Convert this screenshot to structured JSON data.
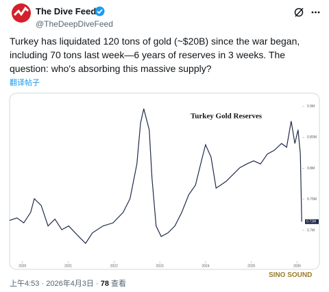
{
  "header": {
    "name": "The Dive Feed",
    "handle": "@TheDeepDiveFeed"
  },
  "post": {
    "lines": [
      "Turkey has liquidated 120 tons of gold (~$20B) since the war began,",
      "including 70 tons last week—6 years of reserves in 3 weeks. The",
      "question: who's absorbing this massive supply?"
    ],
    "translate": "翻译帖子"
  },
  "chart_data": {
    "type": "line",
    "title": "Turkey Gold Reserves",
    "color": "#1f2a4a",
    "x": [
      2019.72,
      2019.88,
      2020.03,
      2020.18,
      2020.26,
      2020.41,
      2020.56,
      2020.71,
      2020.86,
      2021.01,
      2021.23,
      2021.38,
      2021.53,
      2021.76,
      2021.98,
      2022.2,
      2022.35,
      2022.5,
      2022.58,
      2022.65,
      2022.77,
      2022.83,
      2022.92,
      2023.03,
      2023.18,
      2023.33,
      2023.48,
      2023.63,
      2023.78,
      2023.93,
      2024.0,
      2024.12,
      2024.23,
      2024.33,
      2024.45,
      2024.6,
      2024.75,
      2024.9,
      2025.05,
      2025.2,
      2025.35,
      2025.5,
      2025.66,
      2025.77,
      2025.87,
      2025.95,
      2026.02,
      2026.07,
      2026.1
    ],
    "values": [
      0.716,
      0.72,
      0.712,
      0.729,
      0.751,
      0.74,
      0.707,
      0.718,
      0.701,
      0.707,
      0.69,
      0.679,
      0.696,
      0.707,
      0.712,
      0.729,
      0.751,
      0.807,
      0.873,
      0.896,
      0.862,
      0.784,
      0.707,
      0.69,
      0.696,
      0.707,
      0.729,
      0.757,
      0.773,
      0.818,
      0.838,
      0.818,
      0.768,
      0.773,
      0.779,
      0.79,
      0.801,
      0.807,
      0.812,
      0.807,
      0.823,
      0.829,
      0.84,
      0.834,
      0.876,
      0.84,
      0.862,
      0.823,
      0.714
    ],
    "value_labels": [
      null,
      null,
      null,
      null,
      null,
      null,
      null,
      null,
      null,
      null,
      null,
      null,
      null,
      null,
      null,
      null,
      null,
      null,
      null,
      null,
      null,
      null,
      null,
      null,
      null,
      null,
      null,
      null,
      null,
      null,
      null,
      null,
      null,
      null,
      null,
      null,
      null,
      null,
      null,
      null,
      null,
      null,
      null,
      null,
      null,
      null,
      null,
      null,
      "0.71M"
    ],
    "xlim": [
      2019.72,
      2026.1
    ],
    "xticks": [
      2020,
      2021,
      2022,
      2023,
      2024,
      2025,
      2026
    ],
    "ylim": [
      0.65,
      0.91
    ],
    "yticks": [
      {
        "value": 0.7,
        "label": "0.7M"
      },
      {
        "value": 0.75,
        "label": "0.75M"
      },
      {
        "value": 0.8,
        "label": "0.8M"
      },
      {
        "value": 0.85,
        "label": "0.85M"
      },
      {
        "value": 0.9,
        "label": "0.9M"
      }
    ]
  },
  "footer": {
    "time": "上午4:53",
    "separator": "·",
    "date": "2026年4月3日",
    "views": "78",
    "views_label": "查看"
  },
  "watermark": {
    "text": "SINO SOUND"
  }
}
